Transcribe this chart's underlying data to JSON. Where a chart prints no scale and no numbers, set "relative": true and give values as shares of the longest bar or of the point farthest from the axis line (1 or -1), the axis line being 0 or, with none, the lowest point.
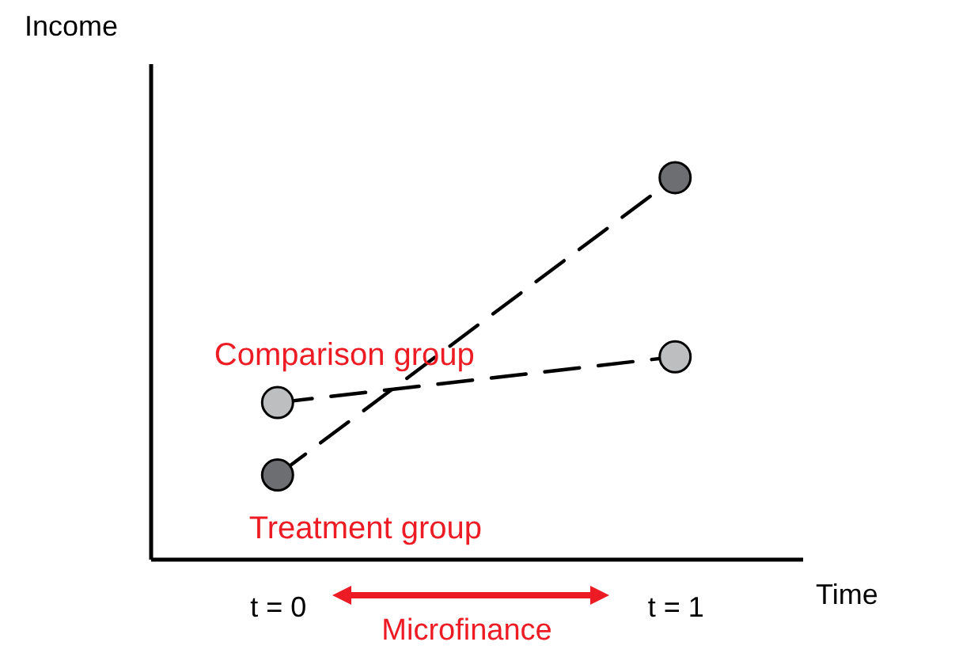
{
  "chart_data": {
    "type": "line",
    "relative": true,
    "xlabel": "Time",
    "ylabel": "Income",
    "categories": [
      "t = 0",
      "t = 1"
    ],
    "marker": "circle",
    "line_style": "dashed",
    "legend": false,
    "grid": false,
    "series": [
      {
        "name": "Comparison group",
        "color": "#bcbec0",
        "values": [
          0.41,
          0.53
        ]
      },
      {
        "name": "Treatment group",
        "color": "#6d6e71",
        "values": [
          0.22,
          1
        ]
      }
    ],
    "annotations": [
      "Microfinance"
    ]
  }
}
